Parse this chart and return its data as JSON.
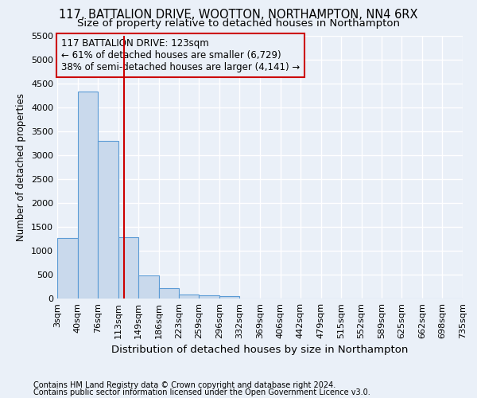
{
  "title": "117, BATTALION DRIVE, WOOTTON, NORTHAMPTON, NN4 6RX",
  "subtitle": "Size of property relative to detached houses in Northampton",
  "xlabel": "Distribution of detached houses by size in Northampton",
  "ylabel": "Number of detached properties",
  "footnote1": "Contains HM Land Registry data © Crown copyright and database right 2024.",
  "footnote2": "Contains public sector information licensed under the Open Government Licence v3.0.",
  "bar_edges": [
    3,
    40,
    76,
    113,
    149,
    186,
    223,
    259,
    296,
    332,
    369,
    406,
    442,
    479,
    515,
    552,
    589,
    625,
    662,
    698,
    735
  ],
  "bar_heights": [
    1270,
    4330,
    3300,
    1280,
    490,
    210,
    90,
    70,
    55,
    0,
    0,
    0,
    0,
    0,
    0,
    0,
    0,
    0,
    0,
    0
  ],
  "bar_color": "#c9d9ec",
  "bar_edge_color": "#5b9bd5",
  "vline_x": 123,
  "vline_color": "#cc0000",
  "annotation_line1": "117 BATTALION DRIVE: 123sqm",
  "annotation_line2": "← 61% of detached houses are smaller (6,729)",
  "annotation_line3": "38% of semi-detached houses are larger (4,141) →",
  "annotation_box_color": "#cc0000",
  "ylim": [
    0,
    5500
  ],
  "yticks": [
    0,
    500,
    1000,
    1500,
    2000,
    2500,
    3000,
    3500,
    4000,
    4500,
    5000,
    5500
  ],
  "background_color": "#eaf0f8",
  "grid_color": "#ffffff",
  "title_fontsize": 10.5,
  "subtitle_fontsize": 9.5,
  "xlabel_fontsize": 9.5,
  "ylabel_fontsize": 8.5,
  "tick_fontsize": 8,
  "annotation_fontsize": 8.5,
  "footnote_fontsize": 7
}
